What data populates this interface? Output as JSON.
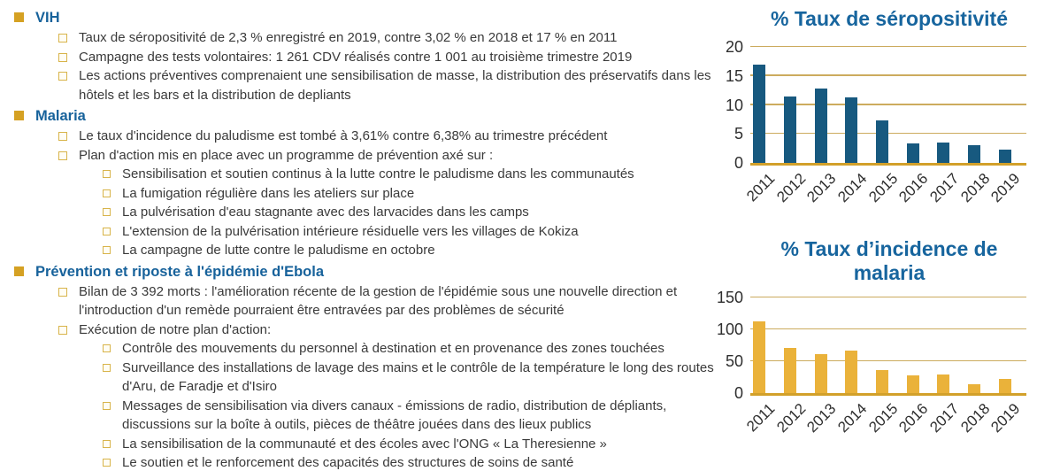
{
  "colors": {
    "heading_blue": "#17629b",
    "chart_title_blue": "#17659e",
    "bullet_gold": "#d5a123",
    "bar_blue": "#17597f",
    "bar_gold": "#eab23a",
    "gridline_tan": "#ccab5e",
    "axis_gold": "#d2a02a",
    "body_text": "#3a3a3a"
  },
  "sections": [
    {
      "title": "VIH",
      "items": [
        {
          "level": 2,
          "text": "Taux de séropositivité de 2,3 % enregistré en 2019, contre 3,02 % en 2018 et 17 % en 2011"
        },
        {
          "level": 2,
          "text": "Campagne des tests volontaires: 1 261 CDV réalisés contre 1 001 au troisième trimestre 2019"
        },
        {
          "level": 2,
          "text": "Les actions préventives comprenaient une sensibilisation de masse, la distribution des préservatifs dans les hôtels et les bars et la distribution de depliants"
        }
      ]
    },
    {
      "title": "Malaria",
      "items": [
        {
          "level": 2,
          "text": "Le taux d'incidence du paludisme est tombé à 3,61% contre 6,38% au trimestre précédent"
        },
        {
          "level": 2,
          "text": "Plan d'action mis en place avec un programme de prévention axé sur :"
        },
        {
          "level": 3,
          "text": "Sensibilisation et soutien continus à la lutte contre le paludisme dans les communautés"
        },
        {
          "level": 3,
          "text": "La fumigation régulière dans les ateliers sur place"
        },
        {
          "level": 3,
          "text": "La pulvérisation d'eau stagnante avec des larvacides dans les camps"
        },
        {
          "level": 3,
          "text": "L'extension de la pulvérisation intérieure résiduelle vers les villages de Kokiza"
        },
        {
          "level": 3,
          "text": "La campagne de lutte contre le paludisme en octobre"
        }
      ]
    },
    {
      "title": "Prévention et riposte à l'épidémie d'Ebola",
      "items": [
        {
          "level": 2,
          "text": "Bilan de 3 392 morts : l'amélioration récente de la gestion de l'épidémie sous une nouvelle direction et l'introduction d'un remède pourraient être entravées par des problèmes de sécurité"
        },
        {
          "level": 2,
          "text": "Exécution de notre plan d'action:"
        },
        {
          "level": 3,
          "text": "Contrôle des mouvements du personnel à destination et en provenance des zones touchées"
        },
        {
          "level": 3,
          "text": "Surveillance des installations de lavage des mains et le contrôle de la température le long des routes d'Aru, de Faradje et d'Isiro"
        },
        {
          "level": 3,
          "text": "Messages de sensibilisation via divers canaux - émissions de radio, distribution de dépliants, discussions sur la boîte à outils, pièces de théâtre jouées dans des lieux publics"
        },
        {
          "level": 3,
          "text": "La sensibilisation de la communauté et des écoles avec l'ONG « La Theresienne »"
        },
        {
          "level": 3,
          "text": "Le soutien et le renforcement des capacités des structures de soins de santé"
        }
      ]
    }
  ],
  "chart_data": [
    {
      "type": "bar",
      "title": "% Taux de séropositivité",
      "categories": [
        "2011",
        "2012",
        "2013",
        "2014",
        "2015",
        "2016",
        "2017",
        "2018",
        "2019"
      ],
      "values": [
        17,
        11.5,
        12.8,
        11.3,
        7.3,
        3.4,
        3.5,
        3.02,
        2.3
      ],
      "xlabel": "",
      "ylabel": "",
      "ylim": [
        0,
        20
      ],
      "yticks": [
        0,
        5,
        10,
        15,
        20
      ],
      "bar_color": "#17597f",
      "grid": true,
      "legend": "none",
      "x_label_rotation_deg": 45
    },
    {
      "type": "bar",
      "title": "% Taux d’incidence de malaria",
      "categories": [
        "2011",
        "2012",
        "2013",
        "2014",
        "2015",
        "2016",
        "2017",
        "2018",
        "2019"
      ],
      "values": [
        113,
        71,
        61,
        66,
        36,
        28,
        29,
        14,
        22
      ],
      "xlabel": "",
      "ylabel": "",
      "ylim": [
        0,
        150
      ],
      "yticks": [
        0,
        50,
        100,
        150
      ],
      "bar_color": "#eab23a",
      "grid": true,
      "legend": "none",
      "x_label_rotation_deg": 45
    }
  ]
}
